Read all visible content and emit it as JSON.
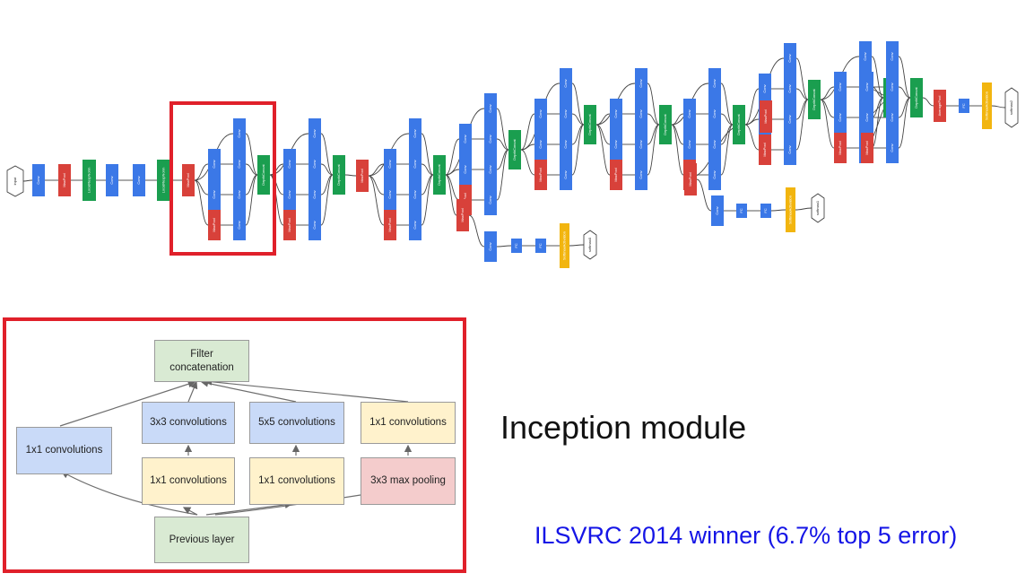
{
  "network": {
    "input_label": "input",
    "conv_label": "Conv",
    "maxpool_label": "MaxPool",
    "concat_label": "DepthConcat",
    "lrn_label": "LocalRespNorm",
    "avgpool_label": "AveragePool",
    "fc_label": "FC",
    "softmax_activation_label": "SoftmaxActivation",
    "output_labels": [
      "softmax0",
      "softmax1",
      "softmax2"
    ],
    "colors": {
      "conv": "#3b78e7",
      "pool": "#d8413a",
      "concat": "#1a9e4f",
      "softmax": "#f2b50f",
      "highlight": "#e0202a"
    }
  },
  "module": {
    "top": "Filter concatenation",
    "b1": "1x1 convolutions",
    "b2_top": "3x3 convolutions",
    "b3_top": "5x5 convolutions",
    "b4_top": "1x1 convolutions",
    "b2_bottom": "1x1 convolutions",
    "b3_bottom": "1x1 convolutions",
    "b4_bottom": "3x3 max pooling",
    "bottom": "Previous layer"
  },
  "title": "Inception module",
  "subtitle": "ILSVRC 2014 winner (6.7% top 5 error)"
}
